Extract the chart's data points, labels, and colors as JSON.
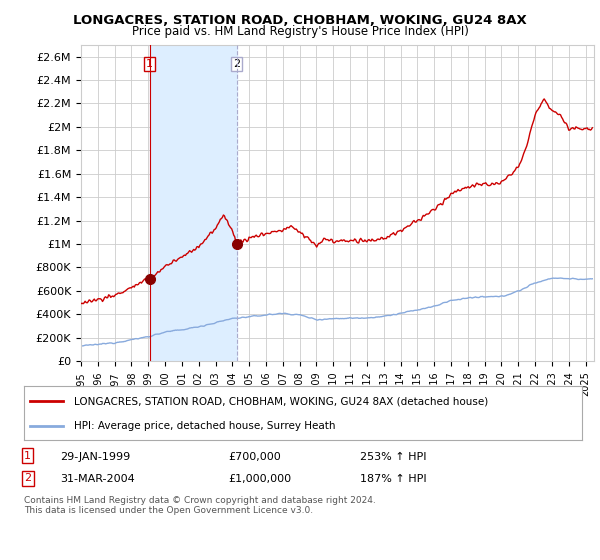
{
  "title": "LONGACRES, STATION ROAD, CHOBHAM, WOKING, GU24 8AX",
  "subtitle": "Price paid vs. HM Land Registry's House Price Index (HPI)",
  "ylim": [
    0,
    2700000
  ],
  "yticks": [
    0,
    200000,
    400000,
    600000,
    800000,
    1000000,
    1200000,
    1400000,
    1600000,
    1800000,
    2000000,
    2200000,
    2400000,
    2600000
  ],
  "ytick_labels": [
    "£0",
    "£200K",
    "£400K",
    "£600K",
    "£800K",
    "£1M",
    "£1.2M",
    "£1.4M",
    "£1.6M",
    "£1.8M",
    "£2M",
    "£2.2M",
    "£2.4M",
    "£2.6M"
  ],
  "xlim_start": 1995.0,
  "xlim_end": 2025.5,
  "xtick_years": [
    1995,
    1996,
    1997,
    1998,
    1999,
    2000,
    2001,
    2002,
    2003,
    2004,
    2005,
    2006,
    2007,
    2008,
    2009,
    2010,
    2011,
    2012,
    2013,
    2014,
    2015,
    2016,
    2017,
    2018,
    2019,
    2020,
    2021,
    2022,
    2023,
    2024,
    2025
  ],
  "sale_color": "#cc0000",
  "hpi_color": "#88aadd",
  "vline1_color": "#cc0000",
  "vline2_color": "#aaaacc",
  "shade_color": "#ddeeff",
  "dot_color": "#880000",
  "legend_box_color": "#ffffff",
  "legend_border_color": "#aaaaaa",
  "sale_label": "LONGACRES, STATION ROAD, CHOBHAM, WOKING, GU24 8AX (detached house)",
  "hpi_label": "HPI: Average price, detached house, Surrey Heath",
  "transaction1_date": "29-JAN-1999",
  "transaction1_price": "£700,000",
  "transaction1_hpi": "253% ↑ HPI",
  "transaction1_year": 1999.08,
  "transaction1_price_val": 700000,
  "transaction2_date": "31-MAR-2004",
  "transaction2_price": "£1,000,000",
  "transaction2_hpi": "187% ↑ HPI",
  "transaction2_year": 2004.25,
  "transaction2_price_val": 1000000,
  "footer": "Contains HM Land Registry data © Crown copyright and database right 2024.\nThis data is licensed under the Open Government Licence v3.0.",
  "bg_color": "#ffffff",
  "plot_bg_color": "#ffffff",
  "grid_color": "#cccccc"
}
